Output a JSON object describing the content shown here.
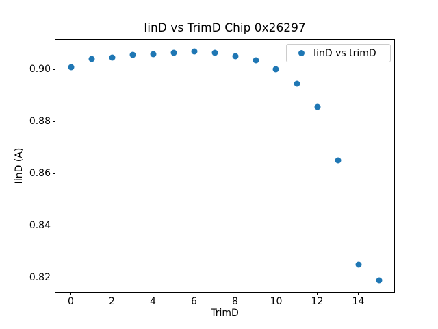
{
  "figure": {
    "background_color": "#ffffff",
    "text_color": "#000000"
  },
  "chart_data": {
    "type": "scatter",
    "title": "IinD vs TrimD Chip 0x26297",
    "xlabel": "TrimD",
    "ylabel": "IinD (A)",
    "legend": {
      "label": "IinD vs trimD",
      "position": "upper right"
    },
    "marker_color": "#1f77b4",
    "grid": false,
    "x": [
      0,
      1,
      2,
      3,
      4,
      5,
      6,
      7,
      8,
      9,
      10,
      11,
      12,
      13,
      14,
      15
    ],
    "y": [
      0.901,
      0.904,
      0.9045,
      0.9055,
      0.906,
      0.9065,
      0.907,
      0.9065,
      0.905,
      0.9035,
      0.9,
      0.8945,
      0.8855,
      0.865,
      0.825,
      0.819
    ],
    "xlim": [
      -0.75,
      15.75
    ],
    "ylim": [
      0.8146,
      0.9114
    ],
    "xticks": [
      0,
      2,
      4,
      6,
      8,
      10,
      12,
      14
    ],
    "xtick_labels": [
      "0",
      "2",
      "4",
      "6",
      "8",
      "10",
      "12",
      "14"
    ],
    "yticks": [
      0.82,
      0.84,
      0.86,
      0.88,
      0.9
    ],
    "ytick_labels": [
      "0.82",
      "0.84",
      "0.86",
      "0.88",
      "0.90"
    ]
  }
}
